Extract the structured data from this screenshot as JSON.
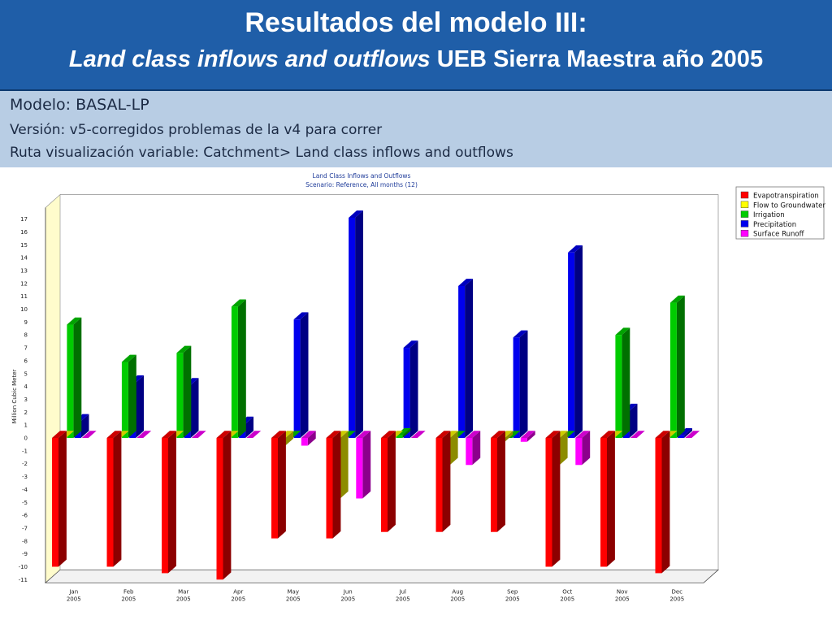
{
  "slide": {
    "title_line1": "Resultados del modelo III:",
    "title_line2_italic": "Land class inflows and outflows",
    "title_line2_rest": " UEB Sierra Maestra año 2005",
    "model_line": "Modelo: BASAL-LP",
    "version_line": "Versión: v5-corregidos problemas de la v4 para correr",
    "path_line": "Ruta visualización variable: Catchment> Land class inflows and outflows"
  },
  "chart_data": {
    "type": "bar",
    "title": "Land Class Inflows and Outflows",
    "subtitle": "Scenario: Reference,  All months (12)",
    "ylabel": "Million Cubic Meter",
    "xlabel": "",
    "ylim": [
      -11,
      17
    ],
    "yticks": [
      -11,
      -10,
      -9,
      -8,
      -7,
      -6,
      -5,
      -4,
      -3,
      -2,
      -1,
      0,
      1,
      2,
      3,
      4,
      5,
      6,
      7,
      8,
      9,
      10,
      11,
      12,
      13,
      14,
      15,
      16,
      17
    ],
    "categories": [
      "Jan",
      "Feb",
      "Mar",
      "Apr",
      "May",
      "Jun",
      "Jul",
      "Aug",
      "Sep",
      "Oct",
      "Nov",
      "Dec"
    ],
    "category_year": "2005",
    "legend_position": "top-right",
    "series": [
      {
        "name": "Evapotranspiration",
        "color": "#ff0000",
        "values": [
          -10,
          -10,
          -10.5,
          -11,
          -7.8,
          -7.8,
          -7.3,
          -7.3,
          -7.3,
          -10,
          -10,
          -10.5
        ]
      },
      {
        "name": "Flow to Groundwater",
        "color": "#ffff00",
        "values": [
          0,
          0,
          0,
          0,
          -0.6,
          -4.7,
          0,
          -2.1,
          -0.3,
          -2.1,
          0,
          0
        ]
      },
      {
        "name": "Irrigation",
        "color": "#00cc00",
        "values": [
          8.8,
          5.9,
          6.6,
          10.2,
          0,
          0,
          0.2,
          0,
          0,
          0,
          8,
          10.5
        ]
      },
      {
        "name": "Precipitation",
        "color": "#0000ee",
        "values": [
          1.3,
          4.3,
          4.1,
          1.1,
          9.2,
          17.1,
          7,
          11.8,
          7.8,
          14.4,
          2.1,
          0.2
        ]
      },
      {
        "name": "Surface Runoff",
        "color": "#ff00ff",
        "values": [
          0,
          0,
          0,
          0,
          -0.6,
          -4.7,
          0,
          -2.1,
          -0.3,
          -2.1,
          0,
          0
        ]
      }
    ]
  }
}
